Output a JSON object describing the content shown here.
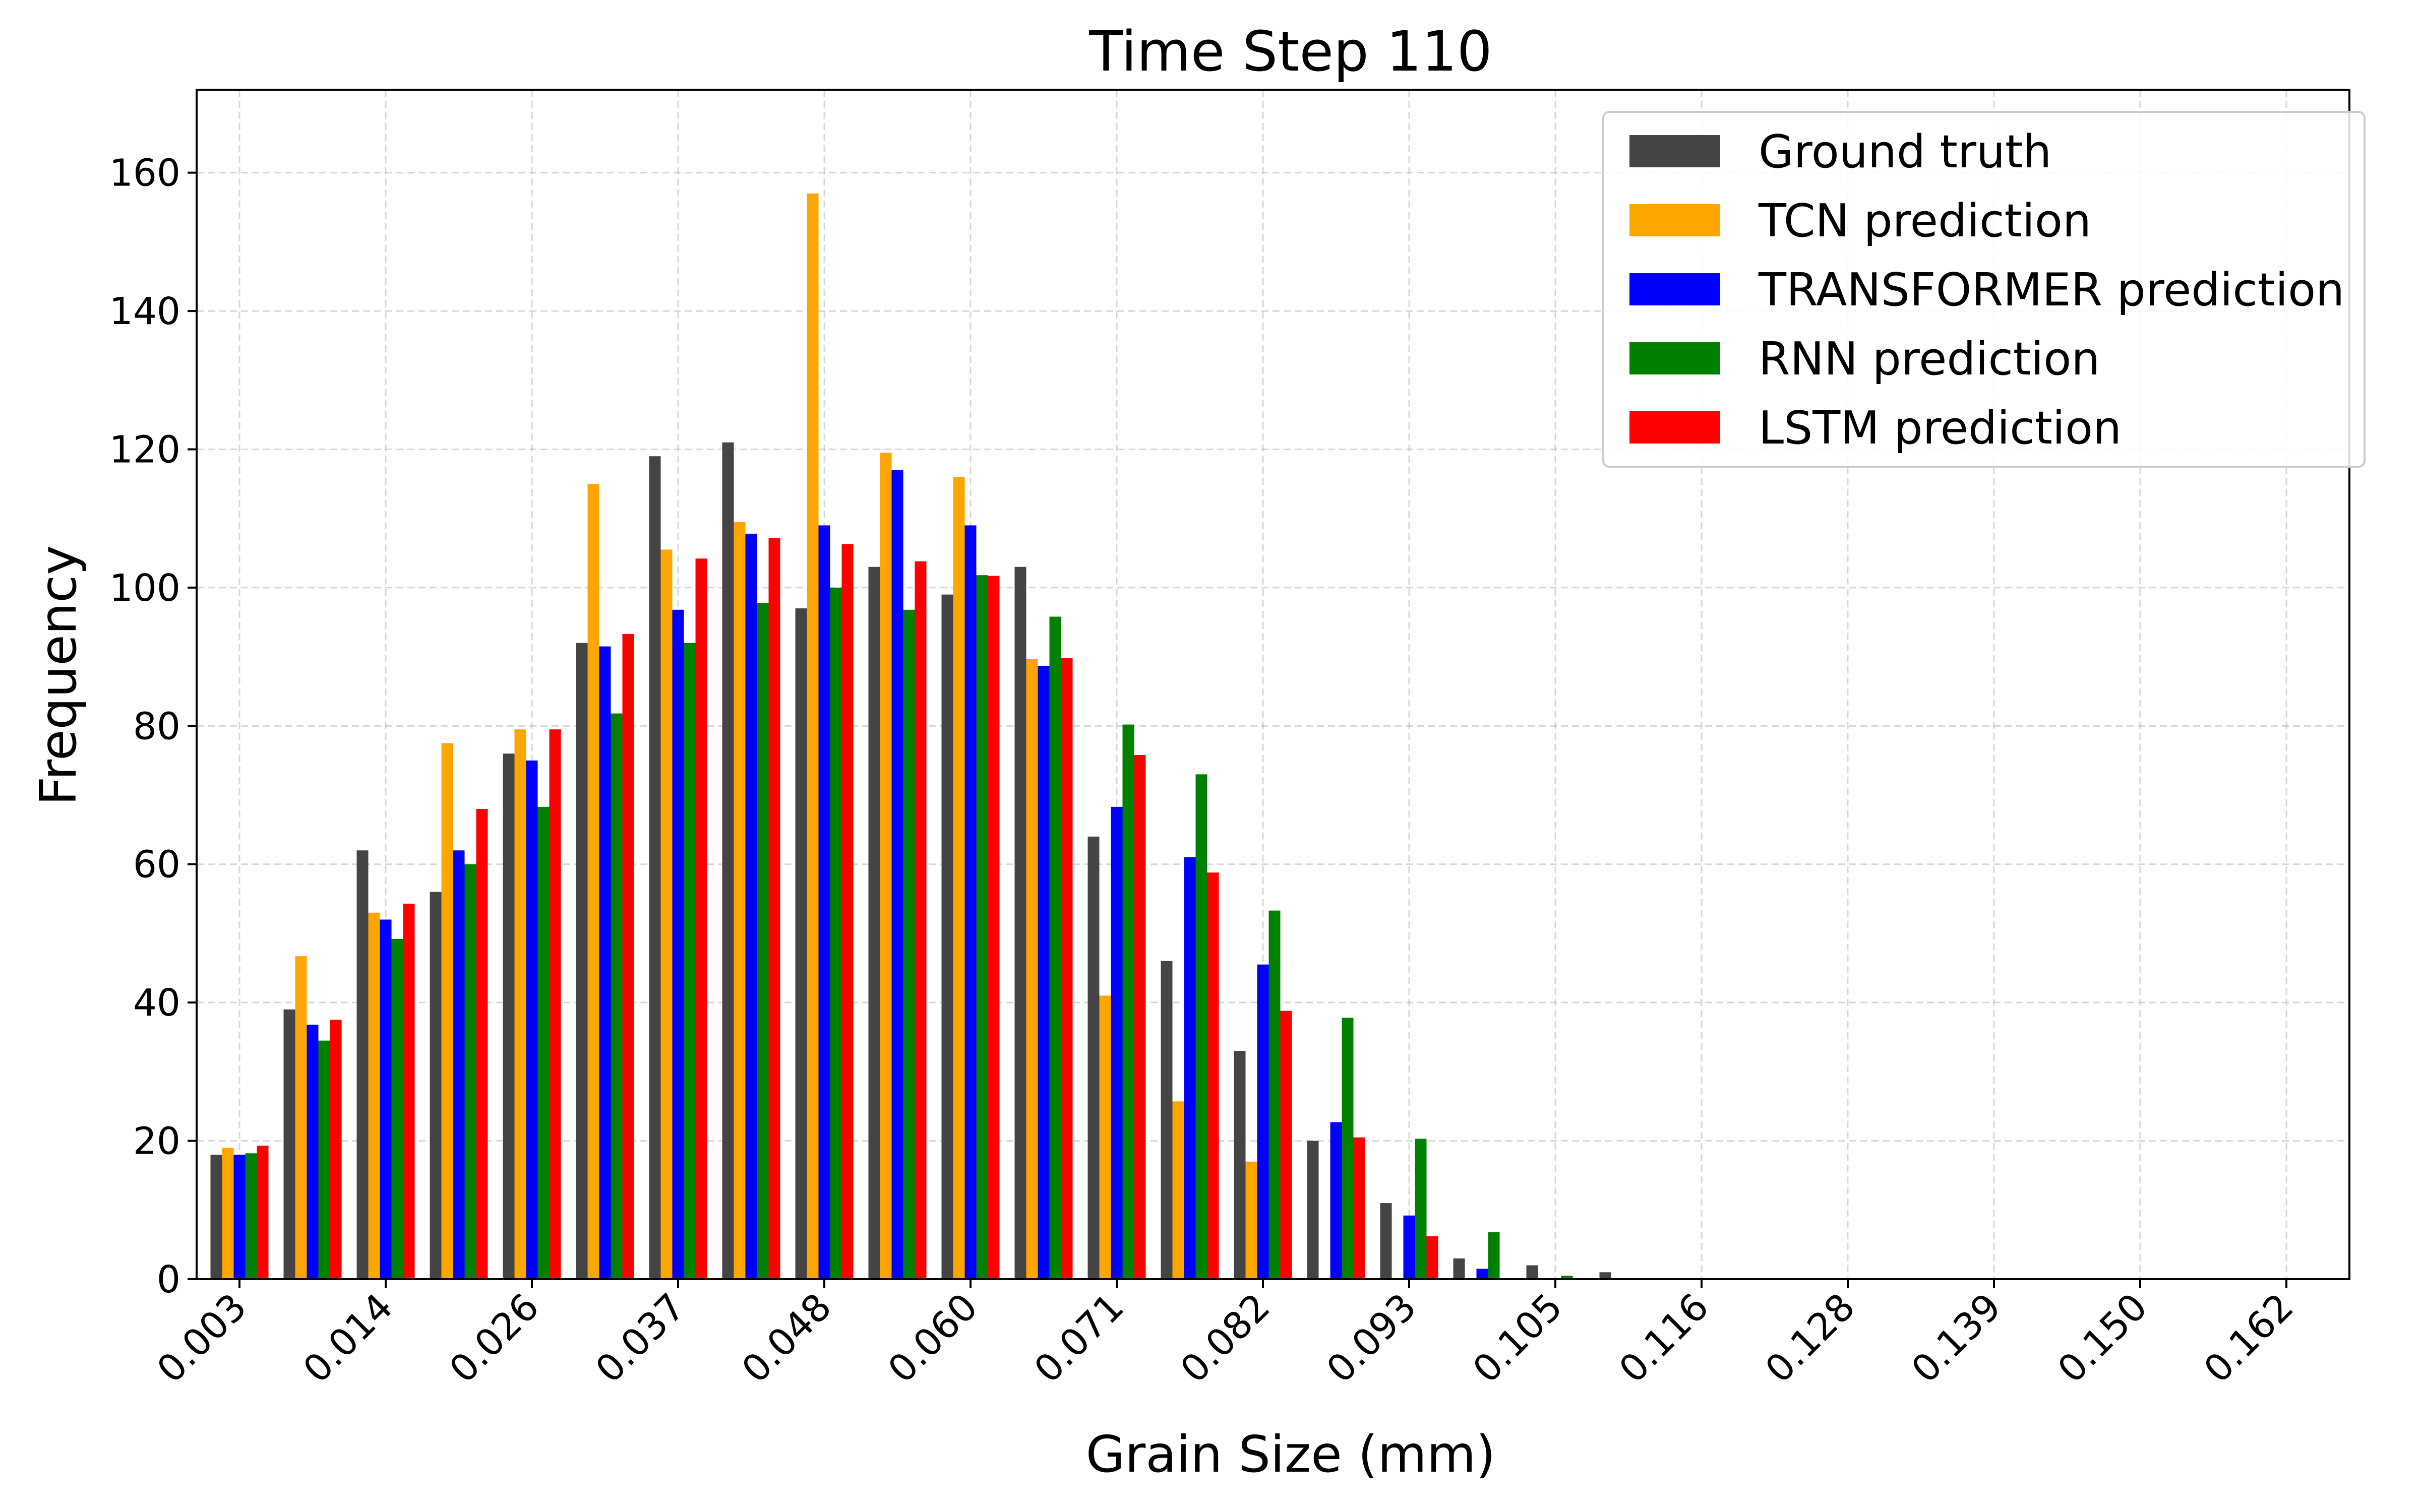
{
  "chart_data": {
    "type": "bar",
    "title": "Time Step 110",
    "xlabel": "Grain Size (mm)",
    "ylabel": "Frequency",
    "ylim": [
      0,
      172
    ],
    "y_ticks": [
      "0",
      "20",
      "40",
      "60",
      "80",
      "100",
      "120",
      "140",
      "160"
    ],
    "x_tick_labels": [
      "0.003",
      "0.014",
      "0.026",
      "0.037",
      "0.048",
      "0.060",
      "0.071",
      "0.082",
      "0.093",
      "0.105",
      "0.116",
      "0.128",
      "0.139",
      "0.150",
      "0.162"
    ],
    "bin_count": 30,
    "grid": true,
    "legend_position": "top-right",
    "series": [
      {
        "name": "Ground truth",
        "color": "#444444",
        "values": [
          18,
          39,
          62,
          56,
          76,
          92,
          119,
          121,
          97,
          103,
          99,
          103,
          64,
          46,
          33,
          20,
          11,
          3,
          2,
          1,
          0,
          0,
          0,
          0,
          0,
          0,
          0,
          0,
          0,
          0
        ]
      },
      {
        "name": "TCN prediction",
        "color": "#FFA500",
        "values": [
          19,
          46.7,
          53,
          77.5,
          79.5,
          115,
          105.5,
          109.5,
          157,
          119.5,
          116,
          89.7,
          41,
          25.7,
          17,
          0,
          0,
          0,
          0,
          0,
          0,
          0,
          0,
          0,
          0,
          0,
          0,
          0,
          0,
          0
        ]
      },
      {
        "name": "TRANSFORMER prediction",
        "color": "#0000FF",
        "values": [
          18,
          36.8,
          52,
          62,
          75,
          91.5,
          96.8,
          107.8,
          109,
          117,
          109,
          88.7,
          68.3,
          61,
          45.5,
          22.7,
          9.2,
          1.5,
          0,
          0,
          0,
          0,
          0,
          0,
          0,
          0,
          0,
          0,
          0,
          0
        ]
      },
      {
        "name": "RNN prediction",
        "color": "#008000",
        "values": [
          18.2,
          34.5,
          49.2,
          60,
          68.3,
          81.8,
          92,
          97.8,
          100,
          96.8,
          101.8,
          95.8,
          80.2,
          73,
          53.3,
          37.8,
          20.3,
          6.8,
          0.5,
          0,
          0,
          0,
          0,
          0,
          0,
          0,
          0,
          0,
          0,
          0
        ]
      },
      {
        "name": "LSTM prediction",
        "color": "#FF0000",
        "values": [
          19.3,
          37.5,
          54.3,
          68,
          79.5,
          93.3,
          104.2,
          107.2,
          106.3,
          103.8,
          101.7,
          89.8,
          75.8,
          58.8,
          38.8,
          20.5,
          6.2,
          0,
          0,
          0,
          0,
          0,
          0,
          0,
          0,
          0,
          0,
          0,
          0,
          0
        ]
      }
    ]
  }
}
